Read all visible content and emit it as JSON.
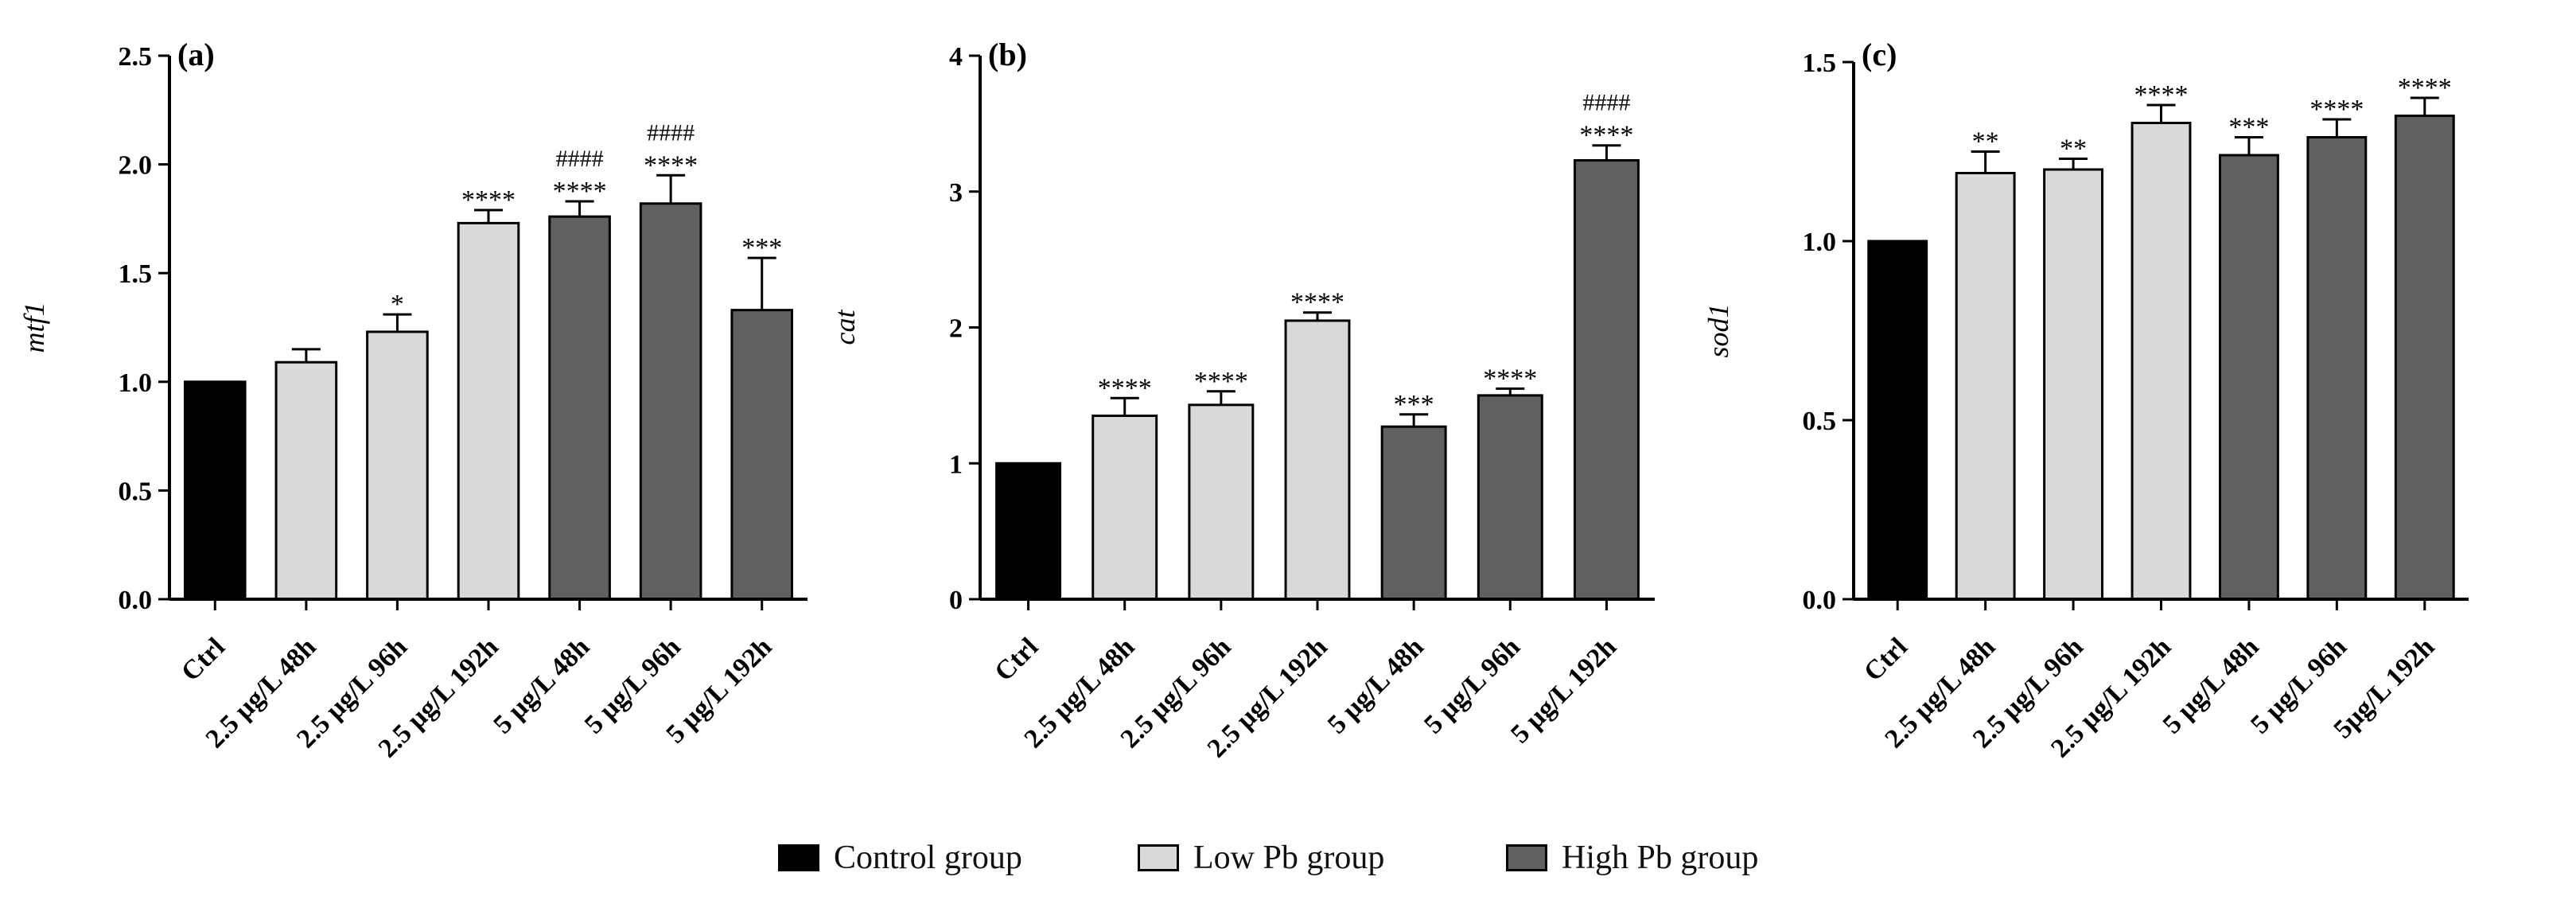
{
  "legend": {
    "control": {
      "label": "Control group",
      "color": "#000000"
    },
    "low": {
      "label": "Low Pb group",
      "color": "#d9d9d9"
    },
    "high": {
      "label": "High Pb group",
      "color": "#606060"
    }
  },
  "chart_data": [
    {
      "type": "bar",
      "panel_label": "(a)",
      "ylabel": "mtf1",
      "ylim": [
        0,
        2.5
      ],
      "yticks": [
        "0.0",
        "0.5",
        "1.0",
        "1.5",
        "2.0",
        "2.5"
      ],
      "categories": [
        "Ctrl",
        "2.5 µg/L 48h",
        "2.5 µg/L 96h",
        "2.5 µg/L 192h",
        "5 µg/L 48h",
        "5 µg/L 96h",
        "5 µg/L 192h"
      ],
      "groups": [
        "control",
        "low",
        "low",
        "low",
        "high",
        "high",
        "high"
      ],
      "values": [
        1.0,
        1.09,
        1.23,
        1.73,
        1.76,
        1.82,
        1.33
      ],
      "errors": [
        0,
        0.06,
        0.08,
        0.06,
        0.07,
        0.13,
        0.24
      ],
      "annotations": [
        [],
        [],
        [
          "*"
        ],
        [
          "****"
        ],
        [
          "####",
          "****"
        ],
        [
          "####",
          "****"
        ],
        [
          "***"
        ]
      ]
    },
    {
      "type": "bar",
      "panel_label": "(b)",
      "ylabel": "cat",
      "ylim": [
        0,
        4
      ],
      "yticks": [
        "0",
        "1",
        "2",
        "3",
        "4"
      ],
      "categories": [
        "Ctrl",
        "2.5 µg/L 48h",
        "2.5 µg/L 96h",
        "2.5 µg/L 192h",
        "5 µg/L 48h",
        "5 µg/L 96h",
        "5 µg/L 192h"
      ],
      "groups": [
        "control",
        "low",
        "low",
        "low",
        "high",
        "high",
        "high"
      ],
      "values": [
        1.0,
        1.35,
        1.43,
        2.05,
        1.27,
        1.5,
        3.23
      ],
      "errors": [
        0,
        0.13,
        0.1,
        0.06,
        0.09,
        0.05,
        0.11
      ],
      "annotations": [
        [],
        [
          "****"
        ],
        [
          "****"
        ],
        [
          "****"
        ],
        [
          "***"
        ],
        [
          "****"
        ],
        [
          "####",
          "****"
        ]
      ]
    },
    {
      "type": "bar",
      "panel_label": "(c)",
      "ylabel": "sod1",
      "ylim": [
        0,
        1.5
      ],
      "yticks": [
        "0.0",
        "0.5",
        "1.0",
        "1.5"
      ],
      "categories": [
        "Ctrl",
        "2.5 µg/L 48h",
        "2.5 µg/L 96h",
        "2.5 µg/L 192h",
        "5 µg/L 48h",
        "5 µg/L 96h",
        "5µg/L 192h"
      ],
      "groups": [
        "control",
        "low",
        "low",
        "low",
        "high",
        "high",
        "high"
      ],
      "values": [
        1.0,
        1.19,
        1.2,
        1.33,
        1.24,
        1.29,
        1.35
      ],
      "errors": [
        0,
        0.06,
        0.03,
        0.05,
        0.05,
        0.05,
        0.05
      ],
      "annotations": [
        [],
        [
          "**"
        ],
        [
          "**"
        ],
        [
          "****"
        ],
        [
          "***"
        ],
        [
          "****"
        ],
        [
          "****"
        ]
      ]
    }
  ]
}
